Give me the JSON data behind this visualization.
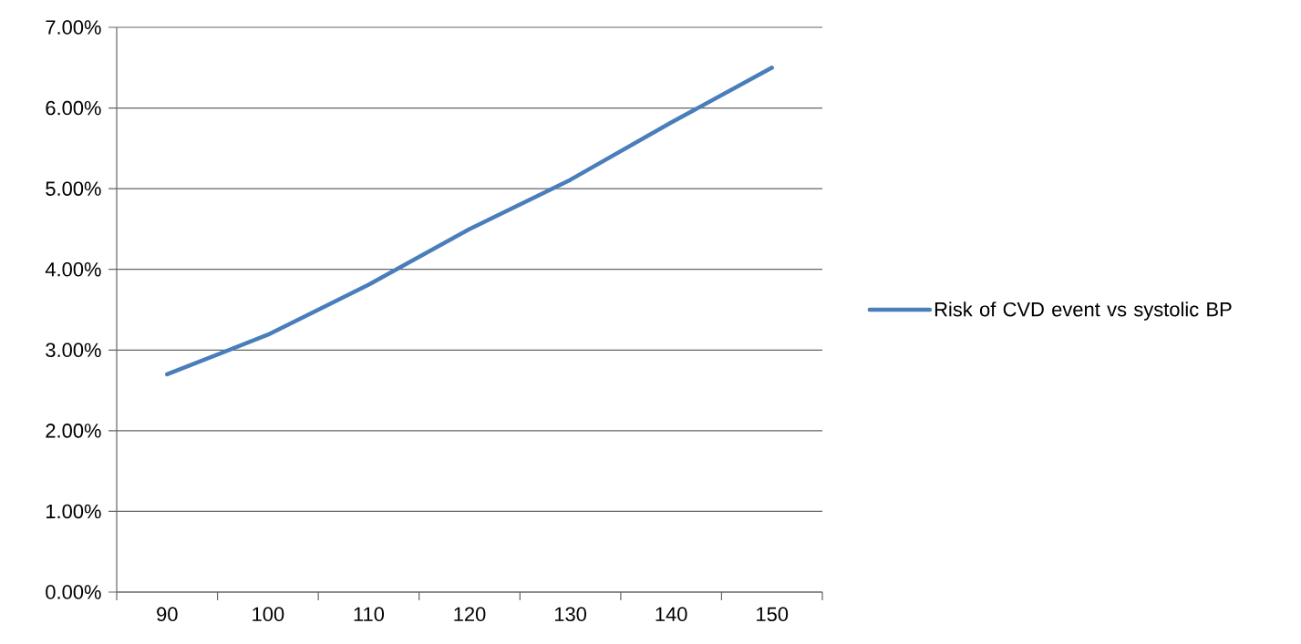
{
  "chart_data": {
    "type": "line",
    "categories": [
      "90",
      "100",
      "110",
      "120",
      "130",
      "140",
      "150"
    ],
    "series": [
      {
        "name": "Risk of CVD event vs systolic BP",
        "color": "#4a7ebb",
        "values": [
          2.7,
          3.19,
          3.81,
          4.5,
          5.11,
          5.82,
          6.5
        ]
      }
    ],
    "ylim": [
      0,
      7
    ],
    "yticks": [
      {
        "value": 0,
        "label": "0.00%"
      },
      {
        "value": 1,
        "label": "1.00%"
      },
      {
        "value": 2,
        "label": "2.00%"
      },
      {
        "value": 3,
        "label": "3.00%"
      },
      {
        "value": 4,
        "label": "4.00%"
      },
      {
        "value": 5,
        "label": "5.00%"
      },
      {
        "value": 6,
        "label": "6.00%"
      },
      {
        "value": 7,
        "label": "7.00%"
      }
    ],
    "grid": "y",
    "legend": "right",
    "marker": "none",
    "line_style": "solid"
  }
}
